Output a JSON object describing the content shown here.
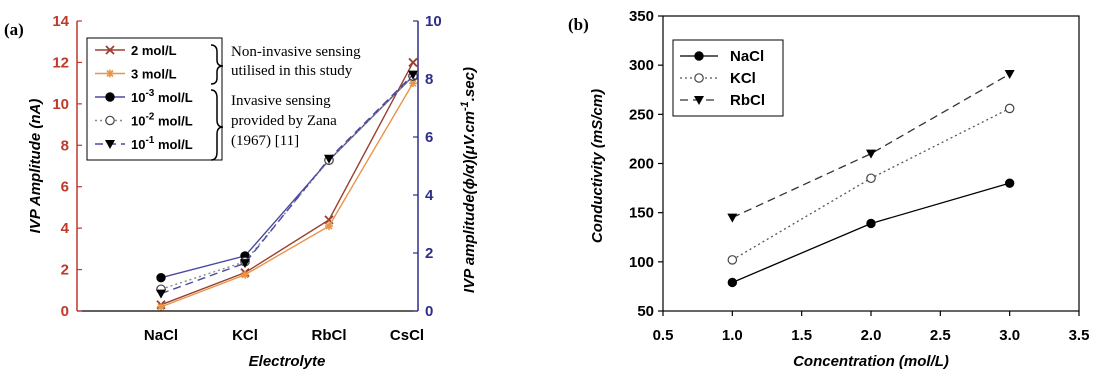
{
  "chart_data": [
    {
      "panel": "(a)",
      "type": "line",
      "xlabel": "Electrolyte",
      "ylabel": "IVP Amplitude (nA)",
      "y2label": "IVP amplitude(ϕ/α)(μV.cm",
      "y2label_sup": "-1",
      "y2label_end": ".sec)",
      "categories": [
        "NaCl",
        "KCl",
        "RbCl",
        "CsCl"
      ],
      "ylim": [
        0,
        14
      ],
      "yticks": [
        0,
        2,
        4,
        6,
        8,
        10,
        12,
        14
      ],
      "y2lim": [
        0,
        10
      ],
      "y2ticks": [
        0,
        2,
        4,
        6,
        8,
        10
      ],
      "grid": false,
      "legend_position": "top-left",
      "colors": {
        "left_axis": "#c0392b",
        "right_axis": "#2e2e8a",
        "brown": "#9a4030",
        "orange": "#e8954a",
        "blue": "#4a4aa0"
      },
      "series": [
        {
          "name": "2 mol/L",
          "axis": "left",
          "marker": "x",
          "color": "#9a4030",
          "dash": "solid",
          "values": [
            0.3,
            1.85,
            4.4,
            12.0
          ]
        },
        {
          "name": "3 mol/L",
          "axis": "left",
          "marker": "asterisk",
          "color": "#e8954a",
          "dash": "solid",
          "values": [
            0.2,
            1.75,
            4.1,
            11.0
          ]
        },
        {
          "name": "10",
          "sup": "-3",
          "name_end": " mol/L",
          "axis": "right",
          "marker": "filled-circle",
          "color": "#4a4aa0",
          "dash": "solid",
          "values": [
            1.15,
            1.9,
            5.2,
            8.1
          ]
        },
        {
          "name": "10",
          "sup": "-2",
          "name_end": " mol/L",
          "axis": "right",
          "marker": "open-circle",
          "color": "#888888",
          "dash": "dotted",
          "values": [
            0.75,
            1.7,
            5.2,
            8.1
          ]
        },
        {
          "name": "10",
          "sup": "-1",
          "name_end": " mol/L",
          "axis": "right",
          "marker": "filled-triangle-down",
          "color": "#4a4aa0",
          "dash": "dashed",
          "values": [
            0.6,
            1.65,
            5.25,
            8.15
          ]
        }
      ],
      "annotations": [
        {
          "lines": [
            "Non-invasive sensing",
            "utilised in this study"
          ]
        },
        {
          "lines": [
            "Invasive sensing",
            "provided by Zana",
            "(1967) [11]"
          ]
        }
      ]
    },
    {
      "panel": "(b)",
      "type": "line",
      "xlabel": "Concentration (mol/L)",
      "ylabel": "Conductivity (mS/cm)",
      "xlim": [
        0.5,
        3.5
      ],
      "xticks": [
        "0.5",
        "1.0",
        "1.5",
        "2.0",
        "2.5",
        "3.0",
        "3.5"
      ],
      "ylim": [
        50,
        350
      ],
      "yticks": [
        50,
        100,
        150,
        200,
        250,
        300,
        350
      ],
      "grid": false,
      "legend_position": "top-left",
      "series": [
        {
          "name": "NaCl",
          "marker": "filled-circle",
          "color": "#000000",
          "dash": "solid",
          "x": [
            1.0,
            2.0,
            3.0
          ],
          "y": [
            79,
            139,
            180
          ]
        },
        {
          "name": "KCl",
          "marker": "open-circle",
          "color": "#555555",
          "dash": "dotted",
          "x": [
            1.0,
            2.0,
            3.0
          ],
          "y": [
            102,
            185,
            256
          ]
        },
        {
          "name": "RbCl",
          "marker": "filled-triangle-down",
          "color": "#333333",
          "dash": "dashed",
          "x": [
            1.0,
            2.0,
            3.0
          ],
          "y": [
            145,
            210,
            291
          ]
        }
      ]
    }
  ]
}
